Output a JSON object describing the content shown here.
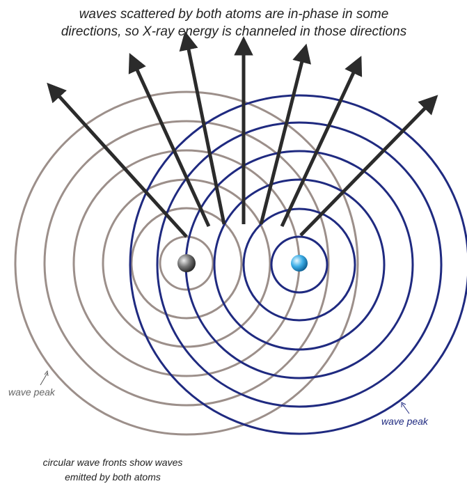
{
  "header": {
    "lines": [
      "waves scattered by both atoms are in-phase in some",
      "directions, so X-ray energy is channeled in those directions"
    ]
  },
  "labels": {
    "left_wave_peak": "wave peak",
    "right_wave_peak": "wave peak"
  },
  "caption": {
    "lines": [
      "circular wave fronts show waves",
      "emitted by both atoms"
    ]
  }
}
